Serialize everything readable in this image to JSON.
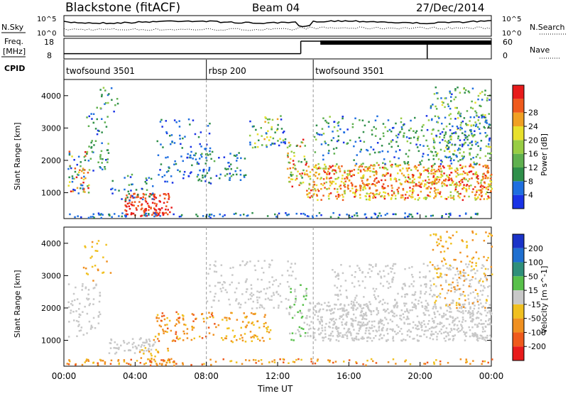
{
  "header": {
    "title": "Blackstone (fitACF)",
    "beam": "Beam 04",
    "date": "27/Dec/2014"
  },
  "chart_data": [
    {
      "type": "line",
      "name": "noise",
      "left_label": "N.Sky",
      "right_label": "N.Search",
      "left_ticks": [
        "10^5",
        "10^0"
      ],
      "right_ticks": [
        "10^5",
        "10^0"
      ],
      "scale": "log"
    },
    {
      "type": "line",
      "name": "freq-nave",
      "left_label_line1": "Freq.",
      "left_label_line2": "[MHz]",
      "right_label": "Nave",
      "left_ticks": [
        18,
        8
      ],
      "right_ticks": [
        60,
        0
      ],
      "ylim_left": [
        8,
        18
      ],
      "ylim_right": [
        0,
        60
      ],
      "freq_segments": [
        {
          "x0": 0.0,
          "x1": 13.3,
          "value": 10.0
        },
        {
          "x0": 13.3,
          "x1": 24.0,
          "value": 18.0
        }
      ]
    },
    {
      "type": "table",
      "name": "cpid",
      "label": "CPID",
      "segments": [
        {
          "start": 0.0,
          "end": 8.0,
          "label": "twofsound 3501"
        },
        {
          "start": 8.0,
          "end": 14.0,
          "label": "rbsp 200"
        },
        {
          "start": 14.0,
          "end": 24.0,
          "label": "twofsound 3501"
        }
      ]
    },
    {
      "type": "heatmap",
      "name": "power",
      "ylabel": "Slant Range [km]",
      "yticks": [
        1000,
        2000,
        3000,
        4000
      ],
      "ylim": [
        200,
        4500
      ],
      "colorbar_label": "Power [dB]",
      "colorbar_ticks": [
        4,
        8,
        12,
        16,
        20,
        24,
        28
      ],
      "colorbar_range": [
        0,
        32
      ],
      "colors": [
        "#1a33e6",
        "#1f6fe0",
        "#2f8f4a",
        "#5fb04f",
        "#98cd44",
        "#e8e02c",
        "#f0a023",
        "#ef5a1c",
        "#e81b1b"
      ]
    },
    {
      "type": "heatmap",
      "name": "velocity",
      "ylabel": "Slant Range [km]",
      "yticks": [
        1000,
        2000,
        3000,
        4000
      ],
      "ylim": [
        200,
        4500
      ],
      "colorbar_label": "Velocity [m s^-1]",
      "colorbar_ticks": [
        200,
        100,
        50,
        15,
        -15,
        -50,
        -100,
        -200
      ],
      "colors": [
        "#1a33c8",
        "#1f6fd0",
        "#2f8f7a",
        "#58c04a",
        "#c8c8c8",
        "#f0c020",
        "#f09020",
        "#ef5a1c",
        "#e81b1b"
      ]
    }
  ],
  "time_axis": {
    "label": "Time UT",
    "ticks": [
      "00:00",
      "04:00",
      "08:00",
      "12:00",
      "16:00",
      "20:00",
      "00:00"
    ],
    "range_hours": [
      0,
      24
    ]
  }
}
